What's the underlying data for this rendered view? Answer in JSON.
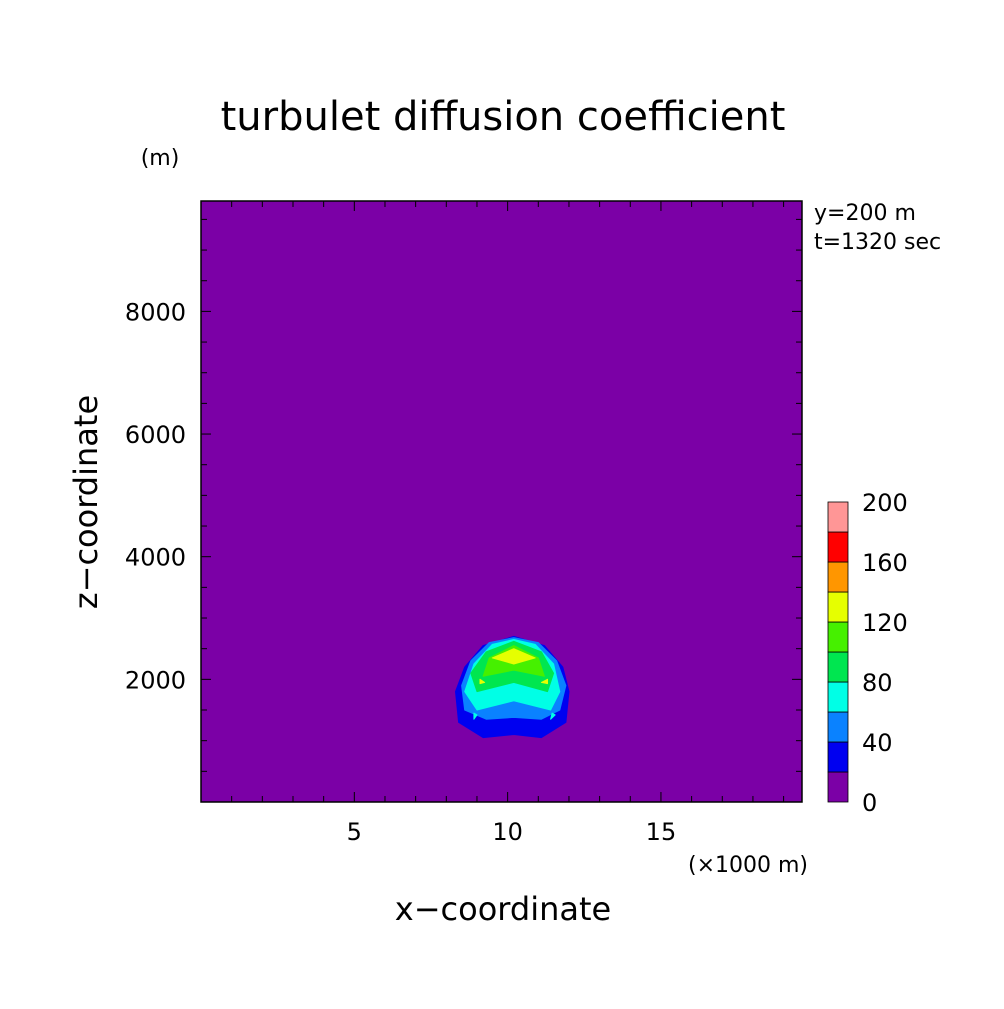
{
  "chart_data": {
    "type": "heatmap",
    "title": "turbulet diffusion coefficient",
    "xlabel": "x−coordinate",
    "ylabel": "z−coordinate",
    "x_unit": "(×1000 m)",
    "y_unit": "(m)",
    "annotations": [
      "y=200 m",
      "t=1320 sec"
    ],
    "xlim": [
      0,
      19.6
    ],
    "ylim": [
      0,
      9800
    ],
    "x_ticks": [
      5,
      10,
      15
    ],
    "x_tick_labels": [
      "5",
      "10",
      "15"
    ],
    "y_ticks": [
      2000,
      4000,
      6000,
      8000
    ],
    "y_tick_labels": [
      "2000",
      "4000",
      "6000",
      "8000"
    ],
    "colorbar": {
      "levels": [
        0,
        20,
        40,
        60,
        80,
        100,
        120,
        140,
        160,
        180,
        200
      ],
      "labels": [
        "0",
        "40",
        "80",
        "120",
        "160",
        "200"
      ],
      "colors": [
        "#7b00a6",
        "#0000f0",
        "#0a82ff",
        "#00ffe6",
        "#00e650",
        "#46f000",
        "#e6ff00",
        "#ff9600",
        "#ff0000",
        "#ff9696"
      ]
    },
    "background_level": 0,
    "contour_regions": [
      {
        "level": "20-40",
        "color": "#0000f0",
        "outline": [
          [
            9.2,
            1050
          ],
          [
            8.4,
            1300
          ],
          [
            8.3,
            1800
          ],
          [
            8.6,
            2200
          ],
          [
            9.2,
            2550
          ],
          [
            10.2,
            2700
          ],
          [
            11.2,
            2550
          ],
          [
            11.8,
            2200
          ],
          [
            12.0,
            1800
          ],
          [
            11.9,
            1300
          ],
          [
            11.1,
            1050
          ],
          [
            10.2,
            1100
          ]
        ]
      },
      {
        "level": "40-60",
        "color": "#0a82ff",
        "outline": [
          [
            9.3,
            1350
          ],
          [
            8.6,
            1500
          ],
          [
            8.5,
            1900
          ],
          [
            8.8,
            2300
          ],
          [
            9.4,
            2600
          ],
          [
            10.2,
            2680
          ],
          [
            11.0,
            2600
          ],
          [
            11.6,
            2300
          ],
          [
            11.9,
            1900
          ],
          [
            11.7,
            1500
          ],
          [
            11.1,
            1350
          ],
          [
            10.2,
            1380
          ]
        ]
      },
      {
        "level": "60-80",
        "color": "#00ffe6",
        "outline": [
          [
            9.0,
            1500
          ],
          [
            8.6,
            1800
          ],
          [
            8.9,
            2250
          ],
          [
            9.5,
            2570
          ],
          [
            10.2,
            2650
          ],
          [
            10.9,
            2570
          ],
          [
            11.5,
            2250
          ],
          [
            11.7,
            1800
          ],
          [
            11.4,
            1500
          ],
          [
            10.2,
            1650
          ]
        ]
      },
      {
        "level": "80-100",
        "color": "#00e650",
        "outline": [
          [
            9.0,
            1800
          ],
          [
            8.8,
            2100
          ],
          [
            9.3,
            2450
          ],
          [
            10.2,
            2620
          ],
          [
            11.1,
            2450
          ],
          [
            11.5,
            2100
          ],
          [
            11.3,
            1800
          ],
          [
            10.2,
            1950
          ]
        ]
      },
      {
        "level": "100-120",
        "color": "#46f000",
        "outline": [
          [
            9.2,
            2050
          ],
          [
            9.4,
            2350
          ],
          [
            10.2,
            2550
          ],
          [
            11.0,
            2350
          ],
          [
            11.2,
            2050
          ],
          [
            10.2,
            2150
          ]
        ]
      },
      {
        "level": "120-140",
        "color": "#e6ff00",
        "outline": [
          [
            9.5,
            2350
          ],
          [
            10.2,
            2500
          ],
          [
            10.9,
            2350
          ],
          [
            10.2,
            2250
          ]
        ]
      },
      {
        "level": "120-140",
        "color": "#e6ff00",
        "outline": [
          [
            9.1,
            1930
          ],
          [
            9.25,
            1950
          ],
          [
            9.1,
            2000
          ]
        ]
      },
      {
        "level": "120-140",
        "color": "#e6ff00",
        "outline": [
          [
            11.1,
            1950
          ],
          [
            11.3,
            1930
          ],
          [
            11.3,
            2000
          ]
        ]
      },
      {
        "level": "60-80",
        "color": "#00ffe6",
        "outline": [
          [
            8.9,
            1350
          ],
          [
            9.0,
            1420
          ],
          [
            8.9,
            1450
          ]
        ]
      },
      {
        "level": "60-80",
        "color": "#00ffe6",
        "outline": [
          [
            11.4,
            1350
          ],
          [
            11.55,
            1420
          ],
          [
            11.45,
            1450
          ]
        ]
      }
    ]
  }
}
